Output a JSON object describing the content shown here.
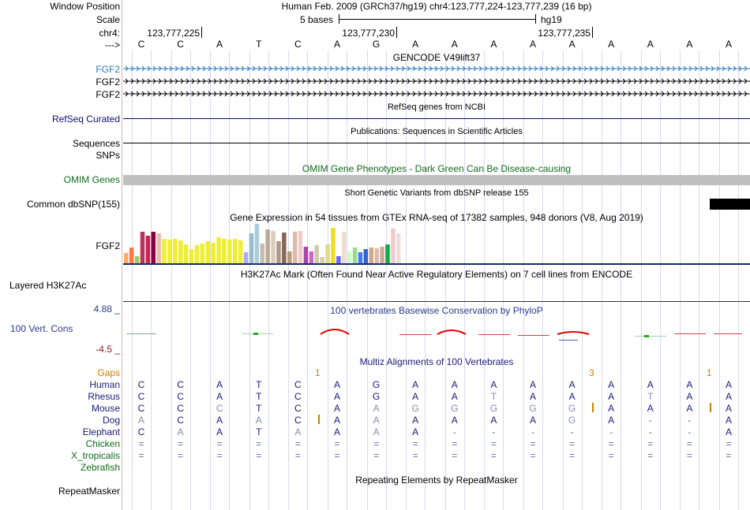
{
  "ruler": {
    "label_position": "Window Position",
    "label_scale": "Scale",
    "label_chrom": "chr4:",
    "label_strand": "--->",
    "assembly_text": "Human Feb. 2009 (GRCh37/hg19)   chr4:123,777,224-123,777,239 (16 bp)",
    "scale_text": "5 bases",
    "scale_db": "hg19",
    "ticks": [
      "123,777,225",
      "123,777,230",
      "123,777,235"
    ],
    "bases": [
      "C",
      "C",
      "A",
      "T",
      "C",
      "A",
      "G",
      "A",
      "A",
      "A",
      "A",
      "A",
      "A",
      "A",
      "A",
      "A"
    ]
  },
  "gencode": {
    "title": "GENCODE V49lift37",
    "genes": [
      "FGF2",
      "FGF2",
      "FGF2"
    ],
    "color": "#2a7ab8"
  },
  "refseq": {
    "title": "RefSeq genes from NCBI",
    "label": "RefSeq Curated",
    "color": "#0c0c78"
  },
  "publications": {
    "title": "Publications: Sequences in Scientific Articles",
    "label_seq": "Sequences",
    "label_snp": "SNPs"
  },
  "omim": {
    "title": "OMIM Gene Phenotypes - Dark Green Can Be Disease-causing",
    "label": "OMIM Genes",
    "color": "#0e6b1a"
  },
  "dbsnp": {
    "title": "Short Genetic Variants from dbSNP release 155",
    "label": "Common dbSNP(155)"
  },
  "gtex": {
    "title": "Gene Expression in 54 tissues from GTEx RNA-seq of 17382 samples, 948 donors (V8, Aug 2019)",
    "label": "FGF2",
    "bars": [
      {
        "v": 0.25,
        "c": "#ffaa66"
      },
      {
        "v": 0.4,
        "c": "#ff7744"
      },
      {
        "v": 0.18,
        "c": "#99cc66"
      },
      {
        "v": 0.8,
        "c": "#bb3355"
      },
      {
        "v": 0.7,
        "c": "#cc2255"
      },
      {
        "v": 0.8,
        "c": "#880044"
      },
      {
        "v": 0.75,
        "c": "#eebbaa"
      },
      {
        "v": 0.62,
        "c": "#eeee33"
      },
      {
        "v": 0.6,
        "c": "#eeee33"
      },
      {
        "v": 0.62,
        "c": "#eeee33"
      },
      {
        "v": 0.58,
        "c": "#eeee33"
      },
      {
        "v": 0.48,
        "c": "#eeee33"
      },
      {
        "v": 0.35,
        "c": "#eeee33"
      },
      {
        "v": 0.45,
        "c": "#eeee33"
      },
      {
        "v": 0.5,
        "c": "#eeee33"
      },
      {
        "v": 0.55,
        "c": "#eeee33"
      },
      {
        "v": 0.52,
        "c": "#eeee33"
      },
      {
        "v": 0.65,
        "c": "#eeee33"
      },
      {
        "v": 0.62,
        "c": "#eeee33"
      },
      {
        "v": 0.6,
        "c": "#eeee33"
      },
      {
        "v": 0.62,
        "c": "#eeee33"
      },
      {
        "v": 0.58,
        "c": "#eeee33"
      },
      {
        "v": 0.28,
        "c": "#aaaaff"
      },
      {
        "v": 0.75,
        "c": "#99bbcc"
      },
      {
        "v": 1.0,
        "c": "#aaccdd"
      },
      {
        "v": 0.5,
        "c": "#ccbbaa"
      },
      {
        "v": 0.85,
        "c": "#bbaa99"
      },
      {
        "v": 0.82,
        "c": "#ddccbb"
      },
      {
        "v": 0.55,
        "c": "#aa9988"
      },
      {
        "v": 0.78,
        "c": "#886655"
      },
      {
        "v": 0.3,
        "c": "#bb9977"
      },
      {
        "v": 0.8,
        "c": "#ddbbaa"
      },
      {
        "v": 0.82,
        "c": "#eecccc"
      },
      {
        "v": 0.42,
        "c": "#aa44aa"
      },
      {
        "v": 0.3,
        "c": "#cc66cc"
      },
      {
        "v": 0.45,
        "c": "#ccccaa"
      },
      {
        "v": 0.15,
        "c": "#ddccaa"
      },
      {
        "v": 0.48,
        "c": "#dddd88"
      },
      {
        "v": 0.9,
        "c": "#eedd22"
      },
      {
        "v": 0.18,
        "c": "#6666ff"
      },
      {
        "v": 0.8,
        "c": "#eeddcc"
      },
      {
        "v": 0.3,
        "c": "#ccffcc"
      },
      {
        "v": 0.4,
        "c": "#99dd88"
      },
      {
        "v": 0.28,
        "c": "#4477ff"
      },
      {
        "v": 0.35,
        "c": "#3366cc"
      },
      {
        "v": 0.4,
        "c": "#ccaa88"
      },
      {
        "v": 0.38,
        "c": "#ddbbaa"
      },
      {
        "v": 0.42,
        "c": "#ccaa99"
      },
      {
        "v": 0.48,
        "c": "#11aa44"
      },
      {
        "v": 0.88,
        "c": "#eecccc"
      },
      {
        "v": 0.75,
        "c": "#eedddd"
      }
    ]
  },
  "h3k27ac": {
    "title": "H3K27Ac Mark (Often Found Near Active Regulatory Elements) on 7 cell lines from ENCODE",
    "label": "Layered H3K27Ac"
  },
  "phylop": {
    "title": "100 vertebrates Basewise Conservation by PhyloP",
    "label": "100 Vert. Cons",
    "max": "4.88 _",
    "min": "-4.5 _",
    "color": "#2a3a8a"
  },
  "multiz": {
    "title": "Multiz Alignments of 100 Vertebrates",
    "gaps_label": "Gaps",
    "gaps": [
      {
        "col": 4.5,
        "t": "1"
      },
      {
        "col": 11.5,
        "t": "3"
      },
      {
        "col": 14.5,
        "t": "1"
      }
    ],
    "species": [
      {
        "name": "Human",
        "seq": [
          "C",
          "C",
          "A",
          "T",
          "C",
          "A",
          "G",
          "A",
          "A",
          "A",
          "A",
          "A",
          "A",
          "A",
          "A",
          "A"
        ]
      },
      {
        "name": "Rhesus",
        "seq": [
          "C",
          "C",
          "A",
          "T",
          "C",
          "A",
          "G",
          "A",
          "A",
          "T",
          "A",
          "A",
          "A",
          "T",
          "A",
          "A"
        ]
      },
      {
        "name": "Mouse",
        "seq": [
          "C",
          "C",
          "C",
          "T",
          "C",
          "A",
          "A",
          "G",
          "G",
          "G",
          "G",
          "G",
          "A",
          "A",
          "A",
          "A"
        ]
      },
      {
        "name": "Dog",
        "seq": [
          "A",
          "C",
          "A",
          "A",
          "C",
          "A",
          "A",
          "A",
          "A",
          "A",
          "A",
          "G",
          "A",
          "-",
          "-",
          "A"
        ]
      },
      {
        "name": "Elephant",
        "seq": [
          "C",
          "A",
          "A",
          "T",
          "A",
          "A",
          "A",
          "A",
          "-",
          "-",
          "-",
          "-",
          "-",
          "-",
          "-",
          "A"
        ]
      },
      {
        "name": "Chicken",
        "seq": [
          "=",
          "=",
          "=",
          "=",
          "=",
          "=",
          "=",
          "=",
          "=",
          "=",
          "=",
          "=",
          "=",
          "=",
          "=",
          "="
        ]
      },
      {
        "name": "X_tropicalis",
        "seq": [
          "=",
          "=",
          "=",
          "=",
          "=",
          "=",
          "=",
          "=",
          "=",
          "=",
          "=",
          "=",
          "=",
          "=",
          "=",
          "="
        ]
      },
      {
        "name": "Zebrafish",
        "seq": []
      }
    ]
  },
  "repeatmasker": {
    "title": "Repeating Elements by RepeatMasker",
    "label": "RepeatMasker"
  }
}
